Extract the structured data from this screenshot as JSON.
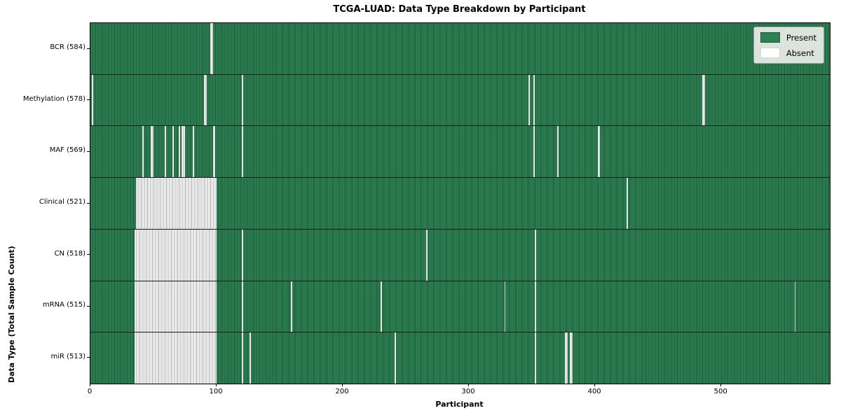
{
  "chart_data": {
    "type": "heatmap",
    "title": "TCGA-LUAD: Data Type Breakdown by Participant",
    "xlabel": "Participant",
    "ylabel": "Data Type (Total Sample Count)",
    "n_participants": 586,
    "x_ticks": [
      0,
      100,
      200,
      300,
      400,
      500
    ],
    "legend": {
      "present_label": "Present",
      "absent_label": "Absent",
      "position": "upper right"
    },
    "colors": {
      "present": "#2e8154",
      "present_edge": "#1e5a39",
      "absent": "#fafafa",
      "absent_edge": "#ababab"
    },
    "rows": [
      {
        "label": "BCR",
        "total": 584,
        "absent_ranges": [
          [
            95,
            2
          ]
        ]
      },
      {
        "label": "Methylation",
        "total": 578,
        "absent_ranges": [
          [
            1,
            1
          ],
          [
            90,
            2
          ],
          [
            120,
            1
          ],
          [
            347,
            1
          ],
          [
            351,
            1
          ],
          [
            485,
            2
          ]
        ]
      },
      {
        "label": "MAF",
        "total": 569,
        "absent_ranges": [
          [
            41,
            1
          ],
          [
            48,
            2
          ],
          [
            59,
            1
          ],
          [
            65,
            1
          ],
          [
            70,
            1
          ],
          [
            72,
            3
          ],
          [
            81,
            1
          ],
          [
            97,
            2
          ],
          [
            120,
            1
          ],
          [
            351,
            1
          ],
          [
            370,
            1
          ],
          [
            402,
            2
          ]
        ]
      },
      {
        "label": "Clinical",
        "total": 521,
        "absent_ranges": [
          [
            36,
            64
          ],
          [
            425,
            1
          ]
        ]
      },
      {
        "label": "CN",
        "total": 518,
        "absent_ranges": [
          [
            35,
            65
          ],
          [
            120,
            1
          ],
          [
            266,
            1
          ],
          [
            352,
            1
          ]
        ]
      },
      {
        "label": "mRNA",
        "total": 515,
        "absent_ranges": [
          [
            35,
            65
          ],
          [
            120,
            1
          ],
          [
            159,
            1
          ],
          [
            230,
            1
          ],
          [
            328,
            1
          ],
          [
            352,
            1
          ],
          [
            558,
            1
          ]
        ]
      },
      {
        "label": "miR",
        "total": 513,
        "absent_ranges": [
          [
            35,
            65
          ],
          [
            120,
            1
          ],
          [
            126,
            1
          ],
          [
            241,
            1
          ],
          [
            352,
            1
          ],
          [
            376,
            2
          ],
          [
            380,
            2
          ]
        ]
      }
    ]
  }
}
